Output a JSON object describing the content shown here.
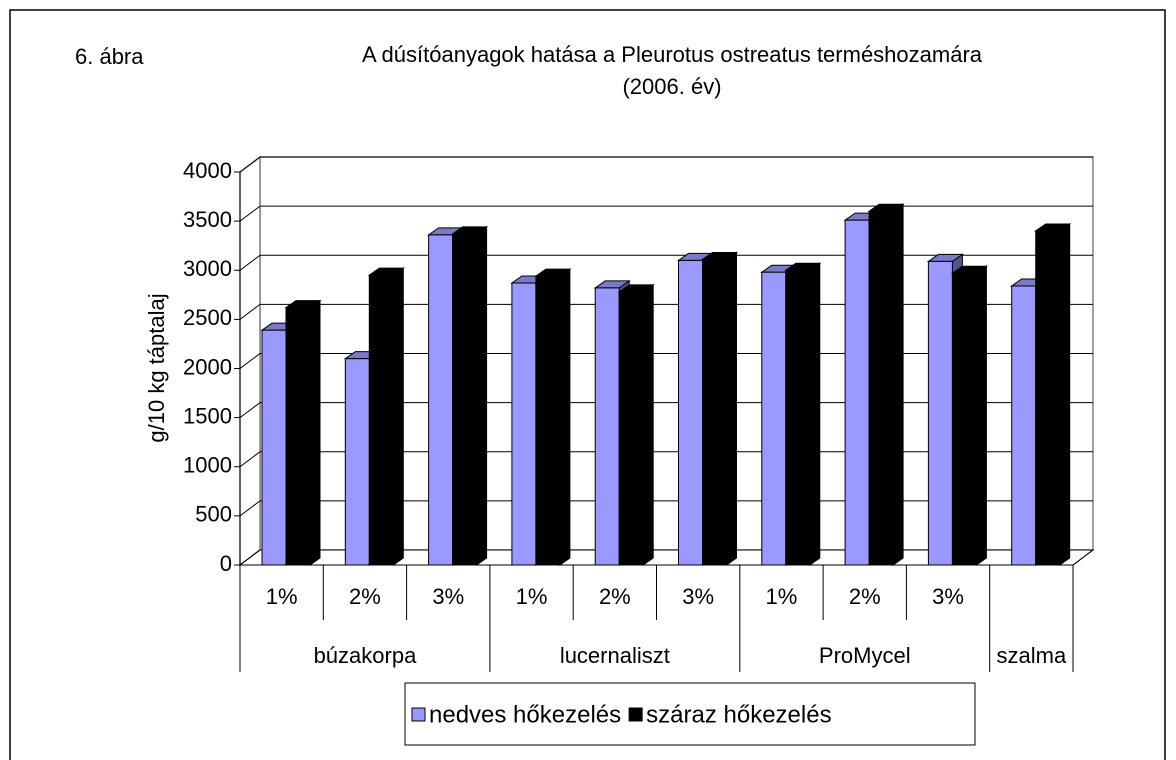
{
  "chart_data": {
    "type": "bar3d",
    "annotation": "6. ábra",
    "title": [
      "A dúsítóanyagok hatása a Pleurotus ostreatus terméshozamára",
      "(2006. év)"
    ],
    "y_label": "g/10 kg táptalaj",
    "categories": [
      [
        "búzakorpa",
        "1%"
      ],
      [
        "búzakorpa",
        "2%"
      ],
      [
        "búzakorpa",
        "3%"
      ],
      [
        "lucernaliszt",
        "1%"
      ],
      [
        "lucernaliszt",
        "2%"
      ],
      [
        "lucernaliszt",
        "3%"
      ],
      [
        "ProMycel",
        "1%"
      ],
      [
        "ProMycel",
        "2%"
      ],
      [
        "ProMycel",
        "3%"
      ],
      [
        "szalma",
        null
      ]
    ],
    "series": [
      {
        "name": "nedves hőkezelés",
        "color": "#9999ff",
        "values": [
          2390,
          2100,
          3360,
          2870,
          2820,
          3100,
          2980,
          3510,
          3090,
          2840
        ]
      },
      {
        "name": "száraz hőkezelés",
        "color": "#000000",
        "values": [
          2620,
          2950,
          3370,
          2940,
          2780,
          3110,
          3000,
          3600,
          2970,
          3400
        ]
      }
    ],
    "ylim": [
      0,
      4000
    ],
    "yticks": [
      0,
      500,
      1000,
      1500,
      2000,
      2500,
      3000,
      3500,
      4000
    ],
    "grid": true,
    "legend": "bottom"
  }
}
